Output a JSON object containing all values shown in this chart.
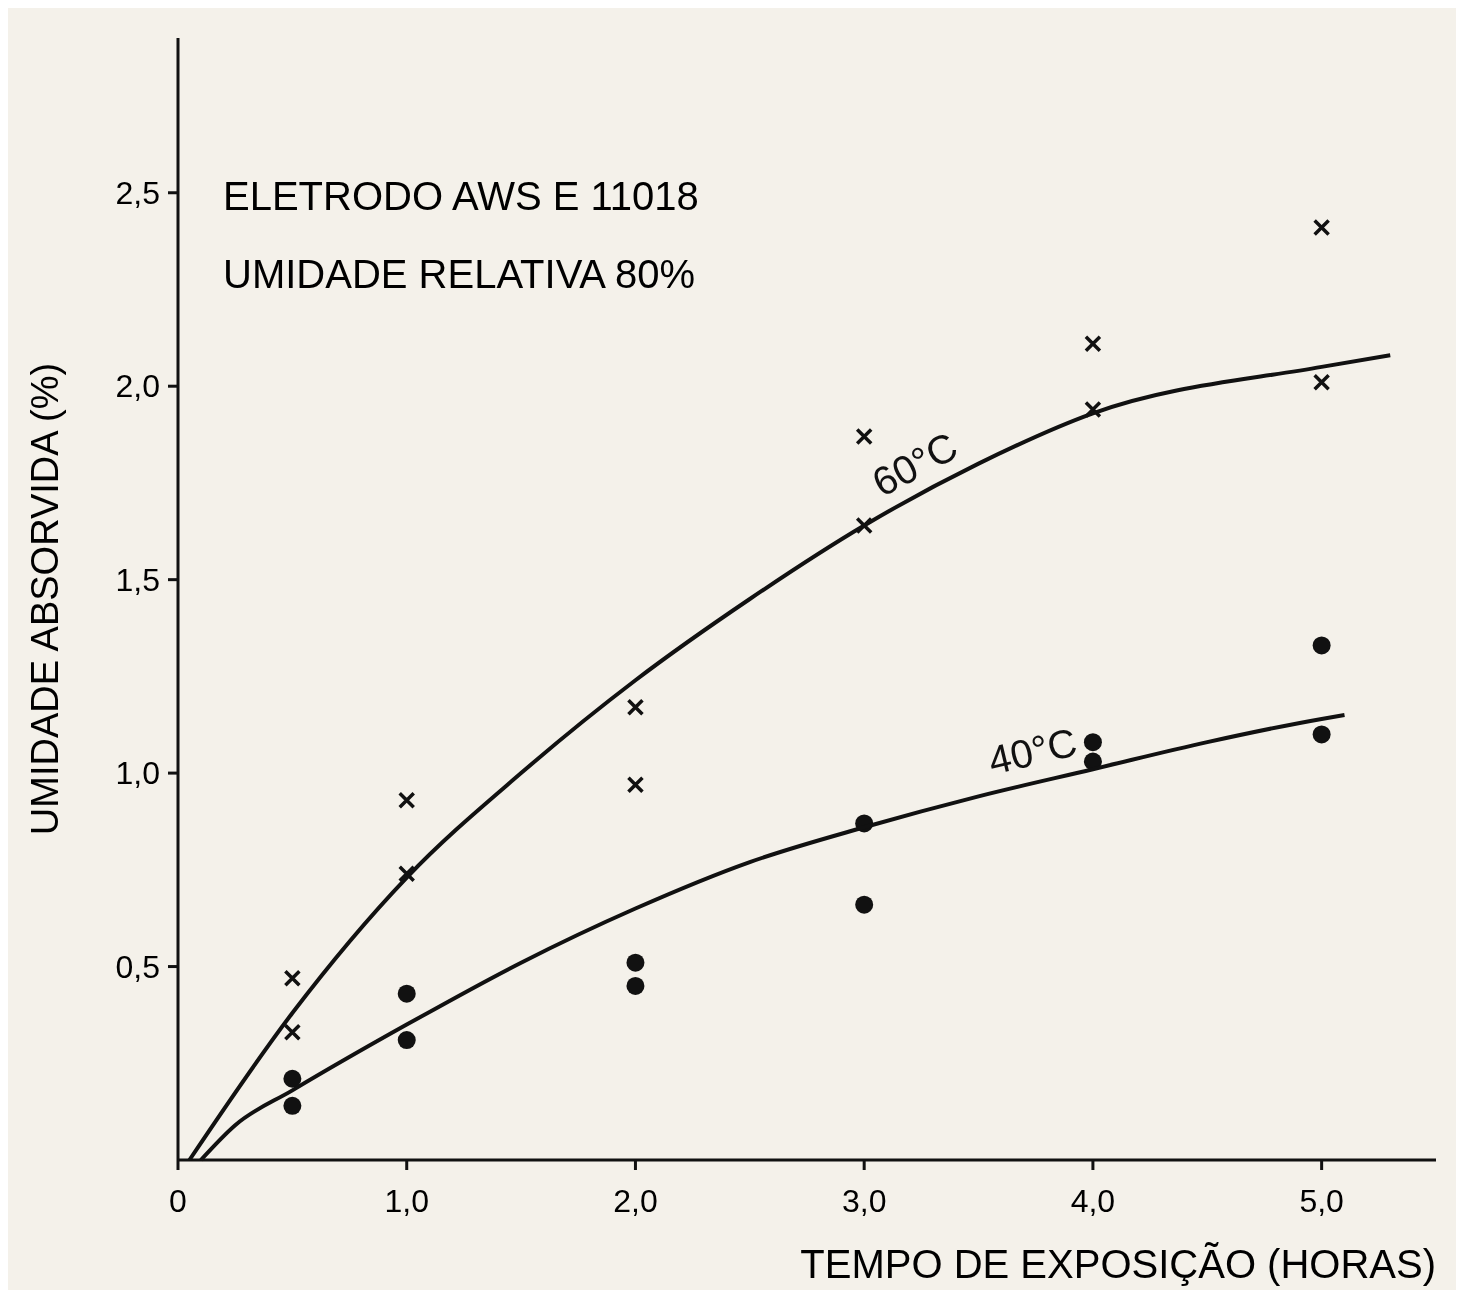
{
  "chart_data": {
    "type": "scatter",
    "xlabel": "TEMPO DE EXPOSIÇÃO (HORAS)",
    "ylabel": "UMIDADE  ABSORVIDA (%)",
    "annotations": [
      "ELETRODO AWS E 11018",
      "UMIDADE RELATIVA  80%"
    ],
    "xlim": [
      0,
      5.5
    ],
    "ylim": [
      0,
      2.9
    ],
    "xticks": [
      {
        "value": 0,
        "label": "0"
      },
      {
        "value": 1,
        "label": "1,0"
      },
      {
        "value": 2,
        "label": "2,0"
      },
      {
        "value": 3,
        "label": "3,0"
      },
      {
        "value": 4,
        "label": "4,0"
      },
      {
        "value": 5,
        "label": "5,0"
      }
    ],
    "yticks": [
      {
        "value": 0.5,
        "label": "0,5"
      },
      {
        "value": 1,
        "label": "1,0"
      },
      {
        "value": 1.5,
        "label": "1,5"
      },
      {
        "value": 2,
        "label": "2,0"
      },
      {
        "value": 2.5,
        "label": "2,5"
      }
    ],
    "grid": false,
    "series": [
      {
        "color": "#111111",
        "marker": "cross",
        "x": [
          0.5,
          0.5,
          1,
          1,
          2,
          2,
          3,
          3,
          4,
          4,
          5,
          5
        ],
        "values": [
          0.47,
          0.33,
          0.93,
          0.74,
          1.17,
          0.97,
          1.87,
          1.64,
          2.11,
          1.94,
          2.41,
          2.01
        ]
      },
      {
        "color": "#111111",
        "marker": "circle",
        "x": [
          0.5,
          0.5,
          1,
          1,
          2,
          2,
          3,
          3,
          4,
          4,
          5,
          5
        ],
        "values": [
          0.21,
          0.14,
          0.43,
          0.31,
          0.51,
          0.45,
          0.87,
          0.66,
          1.08,
          1.03,
          1.33,
          1.1
        ]
      },
      {
        "type": "line",
        "name": "60°C",
        "color": "#111111",
        "marker": "none",
        "x": [
          0.05,
          0.5,
          1,
          1.5,
          2,
          2.5,
          3,
          3.5,
          4,
          5,
          5.3
        ],
        "values": [
          0,
          0.38,
          0.73,
          1.0,
          1.24,
          1.45,
          1.64,
          1.8,
          1.93,
          2.05,
          2.08
        ]
      },
      {
        "type": "line",
        "name": "40°C",
        "color": "#111111",
        "marker": "none",
        "x": [
          0.1,
          0.25,
          0.5,
          1,
          1.5,
          2,
          2.5,
          3,
          3.5,
          4,
          4.5,
          5,
          5.1
        ],
        "values": [
          0,
          0.09,
          0.18,
          0.35,
          0.51,
          0.65,
          0.77,
          0.86,
          0.94,
          1.01,
          1.08,
          1.14,
          1.15
        ]
      }
    ]
  }
}
